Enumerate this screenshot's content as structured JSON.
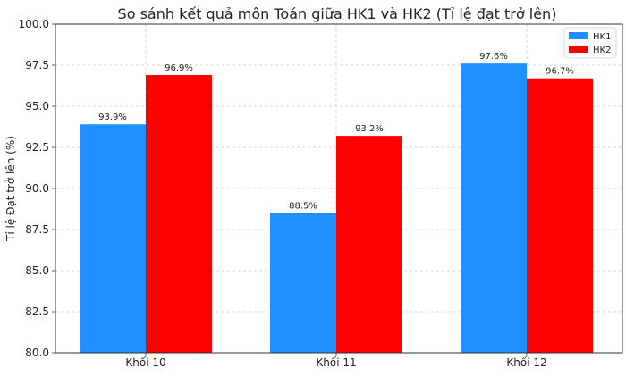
{
  "chart_data": {
    "type": "bar",
    "title": "So sánh kết quả môn Toán giữa HK1 và HK2 (Tỉ lệ đạt trở lên)",
    "xlabel": "",
    "ylabel": "Tỉ lệ Đạt trở lên (%)",
    "categories": [
      "Khối 10",
      "Khối 11",
      "Khối 12"
    ],
    "series": [
      {
        "name": "HK1",
        "values": [
          93.9,
          88.5,
          97.6
        ],
        "color": "#1e90ff"
      },
      {
        "name": "HK2",
        "values": [
          96.9,
          93.2,
          96.7
        ],
        "color": "#ff0000"
      }
    ],
    "value_labels": {
      "HK1": [
        "93.9%",
        "88.5%",
        "97.6%"
      ],
      "HK2": [
        "96.9%",
        "93.2%",
        "96.7%"
      ]
    },
    "ylim": [
      80.0,
      100.0
    ],
    "yticks": [
      "80.0",
      "82.5",
      "85.0",
      "87.5",
      "90.0",
      "92.5",
      "95.0",
      "97.5",
      "100.0"
    ],
    "grid": true,
    "legend_position": "top-right"
  }
}
